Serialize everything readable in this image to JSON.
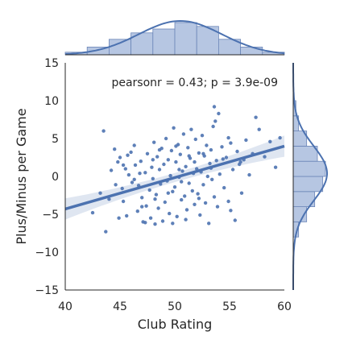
{
  "chart_data": {
    "type": "scatter",
    "xlabel": "Club Rating",
    "ylabel": "Plus/Minus per Game",
    "xlim": [
      40,
      60
    ],
    "ylim": [
      -15,
      15
    ],
    "xticks": [
      "40",
      "45",
      "50",
      "55",
      "60"
    ],
    "yticks": [
      "15",
      "10",
      "5",
      "0",
      "−5",
      "−10",
      "−15"
    ],
    "annotation": "pearsonr = 0.43; p = 3.9e-09",
    "grid": false,
    "regression": {
      "x": [
        40,
        60
      ],
      "y": [
        -4.3,
        4.0
      ],
      "ci_halfwidth_ends": 1.4,
      "ci_halfwidth_mid": 0.6
    },
    "marginal_x_hist": {
      "bin_edges": [
        40,
        42,
        44,
        46,
        48,
        50,
        52,
        54,
        56,
        58,
        60
      ],
      "counts": [
        2,
        6,
        12,
        17,
        20,
        25,
        22,
        12,
        6,
        2
      ]
    },
    "marginal_y_hist": {
      "bin_edges": [
        -8,
        -6,
        -4,
        -2,
        0,
        2,
        4,
        6,
        8,
        10
      ],
      "counts": [
        4,
        10,
        16,
        22,
        24,
        18,
        10,
        4,
        2
      ]
    },
    "colors": {
      "points": "#4c72b0",
      "line": "#4c72b0",
      "hist_fill": "#b6c6e2",
      "hist_edge": "#6b86b8"
    },
    "points": [
      [
        43.5,
        6.0
      ],
      [
        43.7,
        -7.3
      ],
      [
        42.5,
        -4.8
      ],
      [
        43.2,
        -2.2
      ],
      [
        44.0,
        -3.0
      ],
      [
        44.2,
        0.8
      ],
      [
        44.5,
        3.6
      ],
      [
        44.8,
        1.9
      ],
      [
        45.0,
        2.5
      ],
      [
        45.2,
        -1.6
      ],
      [
        45.3,
        -3.3
      ],
      [
        45.5,
        1.0
      ],
      [
        45.6,
        -5.2
      ],
      [
        45.8,
        0.2
      ],
      [
        46.0,
        3.2
      ],
      [
        46.1,
        -0.8
      ],
      [
        46.3,
        4.1
      ],
      [
        46.4,
        1.5
      ],
      [
        46.6,
        -4.6
      ],
      [
        46.7,
        -1.2
      ],
      [
        46.9,
        2.0
      ],
      [
        47.0,
        -2.8
      ],
      [
        47.1,
        -6.0
      ],
      [
        47.3,
        0.5
      ],
      [
        47.4,
        -3.9
      ],
      [
        47.5,
        3.0
      ],
      [
        47.7,
        -1.8
      ],
      [
        47.8,
        -5.5
      ],
      [
        47.9,
        1.2
      ],
      [
        48.0,
        -0.3
      ],
      [
        48.1,
        4.5
      ],
      [
        48.2,
        -6.3
      ],
      [
        48.3,
        -2.4
      ],
      [
        48.4,
        2.6
      ],
      [
        48.5,
        -4.2
      ],
      [
        48.6,
        0.9
      ],
      [
        48.7,
        -1.0
      ],
      [
        48.8,
        3.7
      ],
      [
        48.9,
        -5.9
      ],
      [
        49.0,
        1.6
      ],
      [
        49.1,
        -3.4
      ],
      [
        49.2,
        5.0
      ],
      [
        49.3,
        -0.6
      ],
      [
        49.4,
        2.2
      ],
      [
        49.5,
        -4.9
      ],
      [
        49.6,
        0.1
      ],
      [
        49.7,
        3.4
      ],
      [
        49.8,
        -2.0
      ],
      [
        49.9,
        6.4
      ],
      [
        50.0,
        -1.4
      ],
      [
        50.1,
        1.9
      ],
      [
        50.2,
        -5.3
      ],
      [
        50.3,
        4.2
      ],
      [
        50.4,
        -0.1
      ],
      [
        50.5,
        2.9
      ],
      [
        50.6,
        -3.1
      ],
      [
        50.7,
        0.7
      ],
      [
        50.8,
        5.6
      ],
      [
        50.9,
        -2.6
      ],
      [
        51.0,
        1.3
      ],
      [
        51.1,
        -4.4
      ],
      [
        51.2,
        3.8
      ],
      [
        51.3,
        -0.9
      ],
      [
        51.4,
        2.4
      ],
      [
        51.5,
        6.2
      ],
      [
        51.6,
        -1.9
      ],
      [
        51.7,
        0.4
      ],
      [
        51.8,
        -3.7
      ],
      [
        51.9,
        4.9
      ],
      [
        52.0,
        1.0
      ],
      [
        52.1,
        -2.3
      ],
      [
        52.2,
        3.1
      ],
      [
        52.3,
        -5.1
      ],
      [
        52.4,
        0.6
      ],
      [
        52.5,
        5.4
      ],
      [
        52.6,
        -1.1
      ],
      [
        52.7,
        2.7
      ],
      [
        52.8,
        -3.5
      ],
      [
        52.9,
        4.1
      ],
      [
        53.0,
        0.0
      ],
      [
        53.1,
        -6.2
      ],
      [
        53.2,
        1.7
      ],
      [
        53.3,
        3.5
      ],
      [
        53.4,
        -0.4
      ],
      [
        53.5,
        6.6
      ],
      [
        53.6,
        -2.7
      ],
      [
        53.7,
        7.3
      ],
      [
        53.8,
        2.1
      ],
      [
        53.9,
        -4.0
      ],
      [
        54.0,
        8.3
      ],
      [
        54.1,
        0.3
      ],
      [
        54.3,
        3.9
      ],
      [
        54.5,
        -1.5
      ],
      [
        54.7,
        2.5
      ],
      [
        54.9,
        -3.3
      ],
      [
        55.1,
        4.4
      ],
      [
        55.3,
        0.9
      ],
      [
        55.5,
        -5.8
      ],
      [
        55.7,
        3.3
      ],
      [
        55.9,
        1.6
      ],
      [
        56.1,
        -2.2
      ],
      [
        56.3,
        2.2
      ],
      [
        56.5,
        4.8
      ],
      [
        56.8,
        0.2
      ],
      [
        57.1,
        3.0
      ],
      [
        57.4,
        7.8
      ],
      [
        57.7,
        6.2
      ],
      [
        58.2,
        2.6
      ],
      [
        58.7,
        4.6
      ],
      [
        59.2,
        1.2
      ],
      [
        59.6,
        5.1
      ],
      [
        53.6,
        9.2
      ],
      [
        55.1,
        -4.5
      ],
      [
        56.0,
        1.9
      ],
      [
        44.9,
        -5.5
      ],
      [
        45.3,
        1.5
      ],
      [
        46.3,
        -0.4
      ],
      [
        47.3,
        -6.1
      ],
      [
        48.6,
        3.5
      ],
      [
        49.4,
        -2.2
      ],
      [
        50.4,
        0.9
      ],
      [
        51.3,
        2.7
      ],
      [
        52.2,
        -2.9
      ],
      [
        53.3,
        1.1
      ],
      [
        54.4,
        2.3
      ],
      [
        54.9,
        5.1
      ],
      [
        50.1,
        4.0
      ],
      [
        51.0,
        -5.7
      ],
      [
        48.2,
        -3.0
      ],
      [
        46.8,
        0.4
      ],
      [
        45.7,
        2.8
      ],
      [
        44.6,
        -1.1
      ],
      [
        49.8,
        -6.2
      ],
      [
        52.6,
        3.0
      ],
      [
        50.6,
        -0.7
      ],
      [
        51.8,
        1.9
      ],
      [
        48.0,
        2.2
      ],
      [
        47.0,
        -4.0
      ]
    ]
  }
}
